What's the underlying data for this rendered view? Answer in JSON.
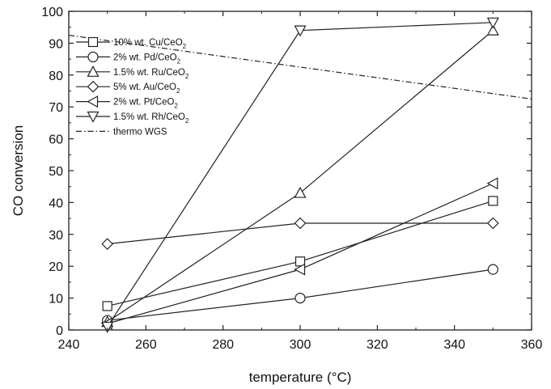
{
  "chart_data": {
    "type": "line",
    "title": "",
    "xlabel": "temperature (°C)",
    "ylabel": "CO conversion",
    "xlim": [
      240,
      360
    ],
    "ylim": [
      0,
      100
    ],
    "x_ticks": [
      240,
      260,
      280,
      300,
      320,
      340,
      360
    ],
    "y_ticks": [
      0,
      10,
      20,
      30,
      40,
      50,
      60,
      70,
      80,
      90,
      100
    ],
    "grid": false,
    "legend_position": "top-left",
    "series": [
      {
        "name": "10% wt. Cu/CeO",
        "name_sub": "2",
        "marker": "square",
        "x": [
          250,
          300,
          350
        ],
        "y": [
          7.5,
          21.5,
          40.5
        ]
      },
      {
        "name": "2% wt. Pd/CeO",
        "name_sub": "2",
        "marker": "circle",
        "x": [
          250,
          300,
          350
        ],
        "y": [
          3,
          10,
          19
        ]
      },
      {
        "name": "1.5% wt. Ru/CeO",
        "name_sub": "2",
        "marker": "triangle-up",
        "x": [
          250,
          300,
          350
        ],
        "y": [
          2.5,
          43,
          94
        ]
      },
      {
        "name": "5% wt. Au/CeO",
        "name_sub": "2",
        "marker": "diamond",
        "x": [
          250,
          300,
          350
        ],
        "y": [
          27,
          33.5,
          33.5
        ]
      },
      {
        "name": "2% wt. Pt/CeO",
        "name_sub": "2",
        "marker": "triangle-left",
        "x": [
          250,
          300,
          350
        ],
        "y": [
          2,
          19,
          46
        ]
      },
      {
        "name": "1.5% wt. Rh/CeO",
        "name_sub": "2",
        "marker": "triangle-down",
        "x": [
          250,
          300,
          350
        ],
        "y": [
          1,
          94,
          96.5
        ]
      },
      {
        "name": "thermo WGS",
        "name_sub": "",
        "marker": "none",
        "line": "dash-dot",
        "x": [
          240,
          360
        ],
        "y": [
          92.5,
          72.5
        ]
      }
    ]
  }
}
